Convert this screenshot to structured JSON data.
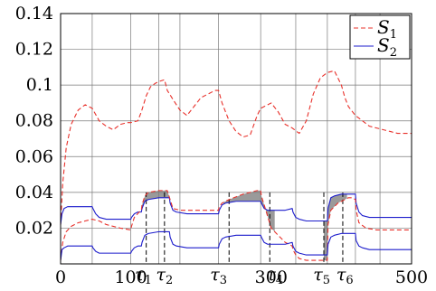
{
  "chart_data": {
    "type": "line",
    "xlim": [
      0,
      500
    ],
    "ylim": [
      0,
      0.14
    ],
    "grid": true,
    "legend_position": "top-right",
    "x_ticks": [
      {
        "value": 0,
        "label": "0"
      },
      {
        "value": 100,
        "label": "100"
      },
      {
        "value": 300,
        "label": "300"
      },
      {
        "value": 500,
        "label": "500"
      }
    ],
    "x_grid": [
      0,
      45,
      100,
      140,
      170,
      225,
      285,
      335,
      380,
      420,
      455,
      500
    ],
    "y_ticks": [
      {
        "value": 0.02,
        "label": "0.02"
      },
      {
        "value": 0.04,
        "label": "0.04"
      },
      {
        "value": 0.06,
        "label": "0.06"
      },
      {
        "value": 0.08,
        "label": "0.08"
      },
      {
        "value": 0.1,
        "label": "0.1"
      },
      {
        "value": 0.12,
        "label": "0.12"
      },
      {
        "value": 0.14,
        "label": "0.14"
      }
    ],
    "tau_marks": [
      {
        "sub": "1",
        "value": 122,
        "label_value": 118
      },
      {
        "sub": "2",
        "value": 148,
        "label_value": 148
      },
      {
        "sub": "3",
        "value": 240,
        "label_value": 225
      },
      {
        "sub": "4",
        "value": 298,
        "label_value": 305
      },
      {
        "sub": "5",
        "value": 375,
        "label_value": 372
      },
      {
        "sub": "6",
        "value": 402,
        "label_value": 405
      }
    ],
    "shaded_regions": [
      {
        "from": 115,
        "to": 155
      },
      {
        "from": 232,
        "to": 305
      },
      {
        "from": 375,
        "to": 408
      }
    ],
    "series": [
      {
        "name": "S",
        "sub": "1",
        "color": "#e8302a",
        "style": "dashed",
        "x": [
          0,
          3,
          8,
          15,
          25,
          35,
          45,
          55,
          65,
          75,
          85,
          95,
          100,
          110,
          115,
          122,
          128,
          135,
          140,
          148,
          152,
          160,
          170,
          180,
          190,
          200,
          210,
          220,
          225,
          230,
          240,
          250,
          260,
          270,
          280,
          285,
          290,
          300,
          310,
          320,
          330,
          340,
          350,
          360,
          370,
          380,
          390,
          400,
          405,
          410,
          420,
          430,
          440,
          450,
          460,
          470,
          480,
          490,
          500
        ],
        "y": [
          0.022,
          0.045,
          0.065,
          0.078,
          0.086,
          0.089,
          0.087,
          0.08,
          0.077,
          0.075,
          0.078,
          0.079,
          0.079,
          0.08,
          0.085,
          0.094,
          0.099,
          0.101,
          0.102,
          0.103,
          0.097,
          0.092,
          0.086,
          0.083,
          0.088,
          0.093,
          0.095,
          0.097,
          0.097,
          0.09,
          0.08,
          0.074,
          0.071,
          0.072,
          0.083,
          0.087,
          0.088,
          0.09,
          0.085,
          0.078,
          0.076,
          0.073,
          0.08,
          0.095,
          0.104,
          0.107,
          0.108,
          0.1,
          0.093,
          0.088,
          0.083,
          0.08,
          0.077,
          0.076,
          0.075,
          0.074,
          0.073,
          0.073,
          0.073
        ]
      },
      {
        "name": "S",
        "sub": "2",
        "color": "#1c1ccc",
        "style": "solid",
        "x": [
          0,
          2,
          5,
          10,
          20,
          35,
          45,
          46,
          50,
          55,
          65,
          85,
          100,
          101,
          105,
          110,
          115,
          116,
          120,
          125,
          140,
          150,
          155,
          156,
          160,
          165,
          180,
          225,
          226,
          230,
          235,
          250,
          280,
          285,
          286,
          290,
          295,
          320,
          330,
          331,
          335,
          340,
          350,
          370,
          380,
          381,
          385,
          390,
          400,
          418,
          420,
          421,
          425,
          430,
          440,
          500
        ],
        "y": [
          0.022,
          0.028,
          0.031,
          0.032,
          0.032,
          0.032,
          0.032,
          0.031,
          0.028,
          0.026,
          0.025,
          0.025,
          0.025,
          0.026,
          0.028,
          0.029,
          0.029,
          0.031,
          0.035,
          0.036,
          0.037,
          0.037,
          0.037,
          0.034,
          0.03,
          0.029,
          0.028,
          0.028,
          0.03,
          0.033,
          0.034,
          0.035,
          0.035,
          0.035,
          0.034,
          0.031,
          0.03,
          0.03,
          0.031,
          0.029,
          0.026,
          0.025,
          0.024,
          0.024,
          0.024,
          0.031,
          0.037,
          0.038,
          0.039,
          0.039,
          0.039,
          0.034,
          0.029,
          0.027,
          0.026,
          0.026
        ]
      },
      {
        "name": "",
        "color": "#e8302a",
        "style": "dashed",
        "x": [
          0,
          3,
          8,
          15,
          25,
          35,
          45,
          55,
          65,
          75,
          85,
          100,
          101,
          105,
          112,
          115,
          116,
          120,
          125,
          140,
          152,
          156,
          160,
          170,
          225,
          226,
          230,
          240,
          260,
          280,
          285,
          286,
          290,
          300,
          320,
          330,
          331,
          335,
          340,
          350,
          370,
          380,
          381,
          385,
          395,
          405,
          410,
          415,
          420,
          421,
          425,
          435,
          450,
          500
        ],
        "y": [
          0.002,
          0.012,
          0.018,
          0.021,
          0.023,
          0.024,
          0.025,
          0.024,
          0.022,
          0.021,
          0.02,
          0.019,
          0.021,
          0.026,
          0.029,
          0.03,
          0.033,
          0.038,
          0.04,
          0.041,
          0.041,
          0.036,
          0.031,
          0.03,
          0.03,
          0.032,
          0.034,
          0.036,
          0.039,
          0.041,
          0.041,
          0.038,
          0.033,
          0.02,
          0.012,
          0.01,
          0.008,
          0.005,
          0.003,
          0.002,
          0.002,
          0.002,
          0.022,
          0.03,
          0.034,
          0.036,
          0.037,
          0.037,
          0.036,
          0.03,
          0.023,
          0.02,
          0.019,
          0.019
        ]
      },
      {
        "name": "",
        "color": "#1c1ccc",
        "style": "solid",
        "x": [
          0,
          2,
          5,
          10,
          20,
          35,
          45,
          46,
          50,
          55,
          65,
          85,
          100,
          101,
          105,
          110,
          115,
          116,
          120,
          125,
          140,
          150,
          155,
          156,
          160,
          165,
          180,
          225,
          226,
          230,
          235,
          250,
          280,
          285,
          286,
          290,
          295,
          320,
          330,
          331,
          335,
          340,
          350,
          370,
          380,
          381,
          385,
          390,
          400,
          418,
          420,
          421,
          425,
          430,
          440,
          500
        ],
        "y": [
          0.002,
          0.008,
          0.009,
          0.01,
          0.01,
          0.01,
          0.01,
          0.009,
          0.007,
          0.006,
          0.006,
          0.006,
          0.006,
          0.007,
          0.009,
          0.01,
          0.01,
          0.012,
          0.016,
          0.017,
          0.018,
          0.018,
          0.018,
          0.015,
          0.011,
          0.01,
          0.009,
          0.009,
          0.011,
          0.014,
          0.015,
          0.016,
          0.016,
          0.016,
          0.015,
          0.012,
          0.011,
          0.011,
          0.012,
          0.01,
          0.007,
          0.006,
          0.005,
          0.005,
          0.005,
          0.011,
          0.015,
          0.016,
          0.017,
          0.017,
          0.017,
          0.013,
          0.01,
          0.009,
          0.008,
          0.008
        ]
      }
    ]
  }
}
